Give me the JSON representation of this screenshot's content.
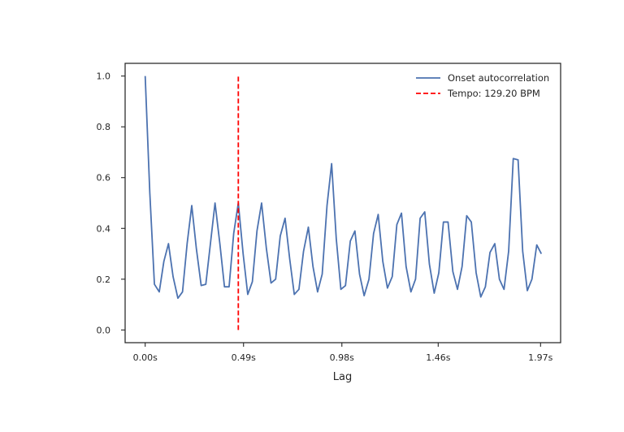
{
  "chart_data": {
    "type": "line",
    "title": "",
    "xlabel": "Lag",
    "ylabel": "",
    "xlim": [
      -0.1,
      2.07
    ],
    "ylim": [
      -0.05,
      1.05
    ],
    "grid": false,
    "legend_position": "top-right",
    "xticks": [
      {
        "value": 0.0,
        "label": "0.00s"
      },
      {
        "value": 0.49,
        "label": "0.49s"
      },
      {
        "value": 0.98,
        "label": "0.98s"
      },
      {
        "value": 1.46,
        "label": "1.46s"
      },
      {
        "value": 1.97,
        "label": "1.97s"
      }
    ],
    "yticks": [
      {
        "value": 0.0,
        "label": "0.0"
      },
      {
        "value": 0.2,
        "label": "0.2"
      },
      {
        "value": 0.4,
        "label": "0.4"
      },
      {
        "value": 0.6,
        "label": "0.6"
      },
      {
        "value": 0.8,
        "label": "0.8"
      },
      {
        "value": 1.0,
        "label": "1.0"
      }
    ],
    "series": [
      {
        "name": "Onset autocorrelation",
        "color": "#4c72b0",
        "style": "solid",
        "x": [
          0.0,
          0.023,
          0.046,
          0.07,
          0.093,
          0.116,
          0.139,
          0.163,
          0.186,
          0.209,
          0.232,
          0.255,
          0.279,
          0.302,
          0.325,
          0.348,
          0.372,
          0.395,
          0.418,
          0.441,
          0.464,
          0.488,
          0.511,
          0.534,
          0.557,
          0.58,
          0.604,
          0.627,
          0.65,
          0.673,
          0.697,
          0.72,
          0.743,
          0.766,
          0.789,
          0.813,
          0.836,
          0.859,
          0.882,
          0.906,
          0.929,
          0.952,
          0.975,
          0.998,
          1.022,
          1.045,
          1.068,
          1.091,
          1.115,
          1.138,
          1.161,
          1.184,
          1.207,
          1.231,
          1.254,
          1.277,
          1.3,
          1.324,
          1.347,
          1.37,
          1.393,
          1.416,
          1.44,
          1.463,
          1.486,
          1.509,
          1.533,
          1.556,
          1.579,
          1.602,
          1.625,
          1.649,
          1.672,
          1.695,
          1.718,
          1.742,
          1.765,
          1.788,
          1.811,
          1.834,
          1.858,
          1.881,
          1.904,
          1.927,
          1.951,
          1.974
        ],
        "values": [
          1.0,
          0.54,
          0.18,
          0.15,
          0.27,
          0.34,
          0.21,
          0.125,
          0.15,
          0.34,
          0.49,
          0.32,
          0.175,
          0.18,
          0.34,
          0.5,
          0.34,
          0.17,
          0.17,
          0.38,
          0.5,
          0.3,
          0.14,
          0.19,
          0.39,
          0.5,
          0.32,
          0.185,
          0.2,
          0.37,
          0.44,
          0.28,
          0.14,
          0.16,
          0.31,
          0.405,
          0.25,
          0.15,
          0.22,
          0.49,
          0.655,
          0.36,
          0.16,
          0.175,
          0.35,
          0.39,
          0.22,
          0.135,
          0.2,
          0.38,
          0.455,
          0.27,
          0.165,
          0.21,
          0.415,
          0.46,
          0.25,
          0.15,
          0.2,
          0.44,
          0.465,
          0.26,
          0.145,
          0.225,
          0.425,
          0.425,
          0.23,
          0.16,
          0.25,
          0.45,
          0.425,
          0.225,
          0.13,
          0.17,
          0.305,
          0.34,
          0.2,
          0.16,
          0.31,
          0.675,
          0.67,
          0.31,
          0.155,
          0.2,
          0.335,
          0.3
        ]
      },
      {
        "name": "Tempo: 129.20 BPM",
        "color": "#ff0000",
        "style": "dashed",
        "x": [
          0.464,
          0.464
        ],
        "values": [
          0.0,
          1.0
        ]
      }
    ]
  }
}
